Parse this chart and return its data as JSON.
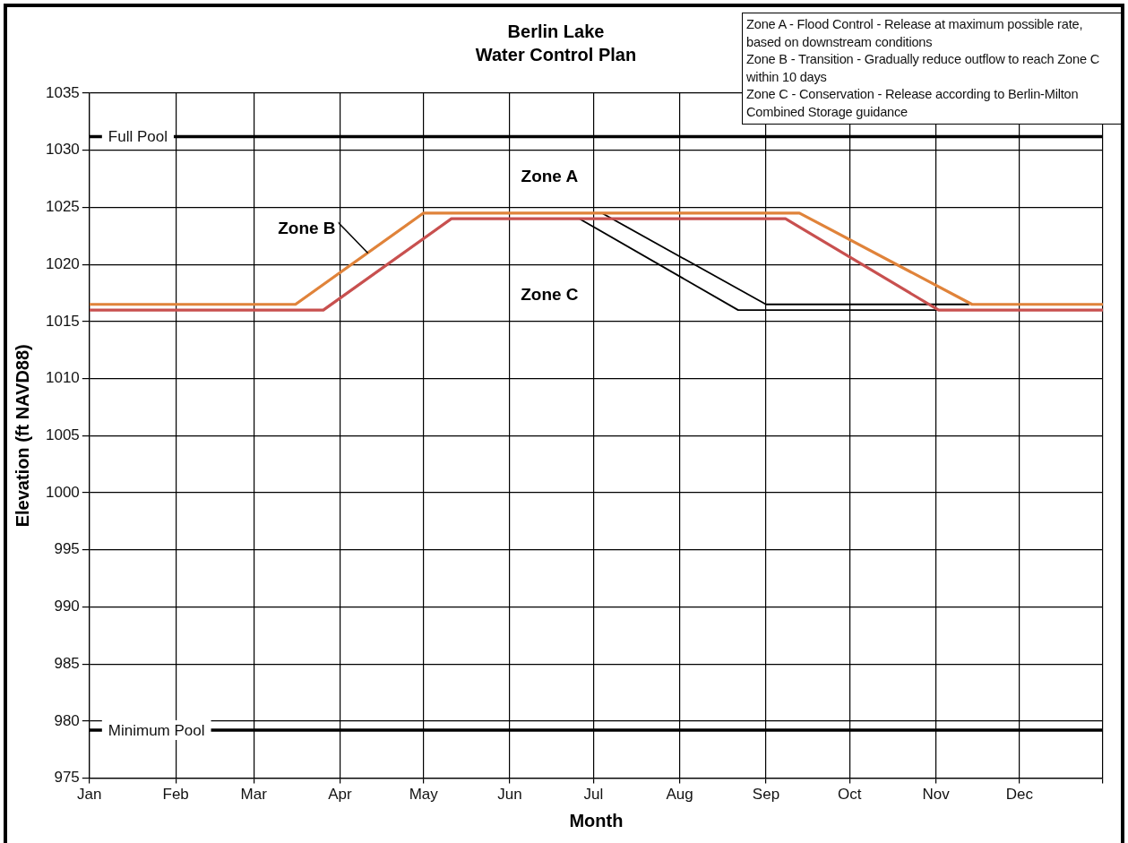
{
  "chart_data": {
    "type": "line",
    "title": "Berlin Lake",
    "subtitle": "Water Control Plan",
    "xlabel": "Month",
    "ylabel": "Elevation (ft NAVD88)",
    "xlim": [
      "--01-01",
      "--12-31"
    ],
    "xticks": [
      {
        "value": "--01-01",
        "label": "Jan"
      },
      {
        "value": "--02-01",
        "label": "Feb"
      },
      {
        "value": "--03-01",
        "label": "Mar"
      },
      {
        "value": "--04-01",
        "label": "Apr"
      },
      {
        "value": "--05-01",
        "label": "May"
      },
      {
        "value": "--06-01",
        "label": "Jun"
      },
      {
        "value": "--07-01",
        "label": "Jul"
      },
      {
        "value": "--08-01",
        "label": "Aug"
      },
      {
        "value": "--09-01",
        "label": "Sep"
      },
      {
        "value": "--10-01",
        "label": "Oct"
      },
      {
        "value": "--11-01",
        "label": "Nov"
      },
      {
        "value": "--12-01",
        "label": "Dec"
      },
      {
        "value": "--12-31",
        "label": null
      }
    ],
    "ylim": [
      975,
      1035
    ],
    "yticks": [
      975,
      980,
      985,
      990,
      995,
      1000,
      1005,
      1010,
      1015,
      1020,
      1025,
      1030,
      1035
    ],
    "grid": true,
    "legend": false,
    "marker": "none",
    "line_style": "solid",
    "series": [
      {
        "color": "#e0833a",
        "x": [
          "--01-01",
          "--03-16",
          "--05-01",
          "--09-13",
          "--11-14",
          "--12-31"
        ],
        "values": [
          1016.5,
          1016.5,
          1024.5,
          1024.5,
          1016.5,
          1016.5
        ]
      },
      {
        "color": "#c8504f",
        "x": [
          "--01-01",
          "--03-26",
          "--05-11",
          "--09-08",
          "--11-02",
          "--12-31"
        ],
        "values": [
          1016,
          1016,
          1024,
          1024,
          1016,
          1016
        ]
      },
      {
        "color": "#000000",
        "x": [
          "--07-04",
          "--09-01",
          "--11-13"
        ],
        "values": [
          1024.5,
          1016.5,
          1016.5
        ]
      },
      {
        "color": "#000000",
        "x": [
          "--06-26",
          "--08-22",
          "--11-02"
        ],
        "values": [
          1024,
          1016,
          1016
        ]
      }
    ],
    "ref_lines": [
      {
        "axis": "y",
        "value": 1031.2,
        "label": "Full Pool",
        "color": "#000000"
      },
      {
        "axis": "y",
        "value": 979.2,
        "label": "Minimum Pool",
        "color": "#000000"
      }
    ],
    "annotations": [
      "Zone A",
      {
        "text": "Zone B",
        "x": "--04-11",
        "y": 1021
      },
      "Zone C",
      "Zone A - Flood Control - Release at maximum possible rate, based on downstream conditions",
      "Zone B - Transition - Gradually reduce outflow to reach Zone C within 10 days",
      "Zone C - Conservation - Release according to Berlin-Milton Combined Storage guidance"
    ]
  }
}
